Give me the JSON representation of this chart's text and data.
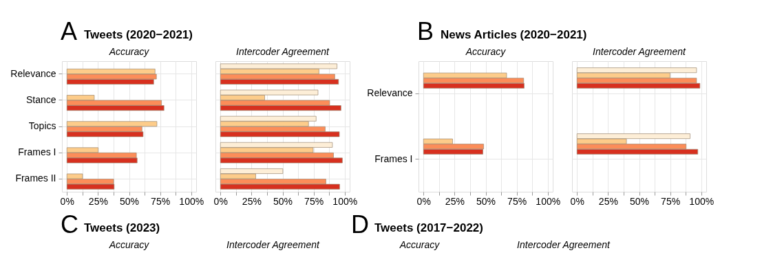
{
  "chart_data": [
    {
      "type": "bar",
      "orientation": "horizontal",
      "title": "Tweets (2020−2021)",
      "subtitle": "Accuracy",
      "annotations": [
        "A"
      ],
      "categories": [
        "Relevance",
        "Stance",
        "Topics",
        "Frames I",
        "Frames II"
      ],
      "series": [
        {
          "color": "#fdeed7",
          "values": [
            null,
            null,
            null,
            null,
            null
          ]
        },
        {
          "color": "#fdcc8a",
          "values": [
            70.9,
            22,
            72.4,
            25.2,
            12.6
          ]
        },
        {
          "color": "#fc8d59",
          "values": [
            72,
            76.1,
            60.4,
            55.9,
            37.6
          ]
        },
        {
          "color": "#d7301f",
          "values": [
            69.8,
            78.1,
            61.3,
            56.5,
            38
          ]
        }
      ],
      "xlim": [
        -4,
        104
      ],
      "xticks": [
        {
          "value": 0,
          "label": "0%"
        },
        {
          "value": 12.5,
          "label": null
        },
        {
          "value": 25,
          "label": "25%"
        },
        {
          "value": 37.5,
          "label": null
        },
        {
          "value": 50,
          "label": "50%"
        },
        {
          "value": 62.5,
          "label": null
        },
        {
          "value": 75,
          "label": "75%"
        },
        {
          "value": 87.5,
          "label": null
        },
        {
          "value": 100,
          "label": "100%"
        }
      ],
      "grid": true,
      "legend": false
    },
    {
      "type": "bar",
      "orientation": "horizontal",
      "subtitle": "Intercoder Agreement",
      "categories": [
        null,
        null,
        null,
        null,
        null
      ],
      "series": [
        {
          "color": "#fdeed7",
          "values": [
            93.8,
            78.5,
            77,
            90.1,
            50.2
          ]
        },
        {
          "color": "#fdcc8a",
          "values": [
            79.3,
            35.6,
            70.9,
            74.6,
            28.4
          ]
        },
        {
          "color": "#fc8d59",
          "values": [
            92,
            87.9,
            84.3,
            91,
            84.9
          ]
        },
        {
          "color": "#d7301f",
          "values": [
            95,
            97,
            95.7,
            98.1,
            95.9
          ]
        }
      ],
      "xlim": [
        -4,
        104
      ],
      "xticks": [
        {
          "value": 0,
          "label": "0%"
        },
        {
          "value": 12.5,
          "label": null
        },
        {
          "value": 25,
          "label": "25%"
        },
        {
          "value": 37.5,
          "label": null
        },
        {
          "value": 50,
          "label": "50%"
        },
        {
          "value": 62.5,
          "label": null
        },
        {
          "value": 75,
          "label": "75%"
        },
        {
          "value": 87.5,
          "label": null
        },
        {
          "value": 100,
          "label": "100%"
        }
      ],
      "grid": true,
      "legend": false,
      "tick_labels": "x"
    },
    {
      "type": "bar",
      "orientation": "horizontal",
      "title": "News Articles (2020−2021)",
      "subtitle": "Accuracy",
      "annotations": [
        "B"
      ],
      "categories": [
        "Relevance",
        "Frames I"
      ],
      "series": [
        {
          "color": "#fdeed7",
          "values": [
            null,
            null
          ]
        },
        {
          "color": "#fdcc8a",
          "values": [
            66.9,
            23.4
          ]
        },
        {
          "color": "#fc8d59",
          "values": [
            80.6,
            48.4
          ]
        },
        {
          "color": "#d7301f",
          "values": [
            81,
            47.8
          ]
        }
      ],
      "xlim": [
        -4,
        104
      ],
      "xticks": [
        {
          "value": 0,
          "label": "0%"
        },
        {
          "value": 12.5,
          "label": null
        },
        {
          "value": 25,
          "label": "25%"
        },
        {
          "value": 37.5,
          "label": null
        },
        {
          "value": 50,
          "label": "50%"
        },
        {
          "value": 62.5,
          "label": null
        },
        {
          "value": 75,
          "label": "75%"
        },
        {
          "value": 87.5,
          "label": null
        },
        {
          "value": 100,
          "label": "100%"
        }
      ],
      "grid": true,
      "legend": false
    },
    {
      "type": "bar",
      "orientation": "horizontal",
      "subtitle": "Intercoder Agreement",
      "categories": [
        null,
        null
      ],
      "series": [
        {
          "color": "#fdeed7",
          "values": [
            96.2,
            91
          ]
        },
        {
          "color": "#fdcc8a",
          "values": [
            74.8,
            39.8
          ]
        },
        {
          "color": "#fc8d59",
          "values": [
            96.2,
            87.8
          ]
        },
        {
          "color": "#d7301f",
          "values": [
            98.9,
            97.2
          ]
        }
      ],
      "xlim": [
        -4,
        104
      ],
      "xticks": [
        {
          "value": 0,
          "label": "0%"
        },
        {
          "value": 12.5,
          "label": null
        },
        {
          "value": 25,
          "label": "25%"
        },
        {
          "value": 37.5,
          "label": null
        },
        {
          "value": 50,
          "label": "50%"
        },
        {
          "value": 62.5,
          "label": null
        },
        {
          "value": 75,
          "label": "75%"
        },
        {
          "value": 87.5,
          "label": null
        },
        {
          "value": 100,
          "label": "100%"
        }
      ],
      "grid": true,
      "legend": false,
      "tick_labels": "x"
    },
    {
      "type": "other",
      "title": "Tweets (2023)",
      "subtitle": "Accuracy",
      "annotations": [
        "C"
      ]
    },
    {
      "type": "other",
      "subtitle": "Intercoder Agreement"
    },
    {
      "type": "other",
      "title": "Tweets (2017−2022)",
      "subtitle": "Accuracy",
      "annotations": [
        "D"
      ]
    },
    {
      "type": "other",
      "subtitle": "Intercoder Agreement"
    }
  ]
}
